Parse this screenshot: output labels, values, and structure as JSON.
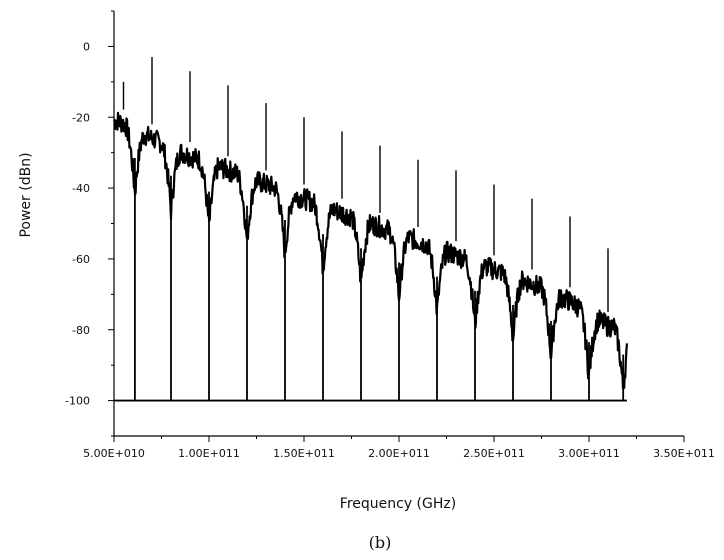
{
  "chart_data": {
    "type": "line",
    "title": "",
    "xlabel": "Frequency (GHz)",
    "ylabel": "Power (dBn)",
    "caption": "(b)",
    "xlim": [
      50000000000,
      350000000000
    ],
    "ylim": [
      -110,
      10
    ],
    "xticks": [
      "5.00E+010",
      "1.00E+011",
      "1.50E+011",
      "2.00E+011",
      "2.50E+011",
      "3.00E+011",
      "3.50E+011"
    ],
    "xtick_values": [
      50000000000,
      100000000000,
      150000000000,
      200000000000,
      250000000000,
      300000000000,
      350000000000
    ],
    "yticks": [
      "0",
      "-20",
      "-40",
      "-60",
      "-80",
      "-100"
    ],
    "ytick_values": [
      0,
      -20,
      -40,
      -60,
      -80,
      -100
    ],
    "baseline": -100,
    "x_end": 320000000000,
    "spectral_lines": [
      {
        "x": 55000000000,
        "y": -10
      },
      {
        "x": 70000000000,
        "y": -3
      },
      {
        "x": 90000000000,
        "y": -7
      },
      {
        "x": 110000000000,
        "y": -11
      },
      {
        "x": 130000000000,
        "y": -16
      },
      {
        "x": 150000000000,
        "y": -20
      },
      {
        "x": 170000000000,
        "y": -24
      },
      {
        "x": 190000000000,
        "y": -28
      },
      {
        "x": 210000000000,
        "y": -32
      },
      {
        "x": 230000000000,
        "y": -35
      },
      {
        "x": 250000000000,
        "y": -39
      },
      {
        "x": 270000000000,
        "y": -43
      },
      {
        "x": 290000000000,
        "y": -48
      },
      {
        "x": 310000000000,
        "y": -57
      }
    ],
    "nulls": [
      {
        "x": 61000000000,
        "y": -100
      },
      {
        "x": 80000000000,
        "y": -100
      },
      {
        "x": 100000000000,
        "y": -100
      },
      {
        "x": 120000000000,
        "y": -100
      },
      {
        "x": 140000000000,
        "y": -100
      },
      {
        "x": 160000000000,
        "y": -100
      },
      {
        "x": 180000000000,
        "y": -100
      },
      {
        "x": 200000000000,
        "y": -100
      },
      {
        "x": 220000000000,
        "y": -100
      },
      {
        "x": 240000000000,
        "y": -100
      },
      {
        "x": 260000000000,
        "y": -100
      },
      {
        "x": 280000000000,
        "y": -100
      },
      {
        "x": 300000000000,
        "y": -100
      },
      {
        "x": 318000000000,
        "y": -100
      }
    ],
    "lobe_peaks": [
      {
        "x": 52000000000,
        "y": -17
      },
      {
        "x": 70000000000,
        "y": -22
      },
      {
        "x": 90000000000,
        "y": -27
      },
      {
        "x": 110000000000,
        "y": -31
      },
      {
        "x": 130000000000,
        "y": -35
      },
      {
        "x": 150000000000,
        "y": -39
      },
      {
        "x": 170000000000,
        "y": -43
      },
      {
        "x": 190000000000,
        "y": -47
      },
      {
        "x": 210000000000,
        "y": -51
      },
      {
        "x": 230000000000,
        "y": -55
      },
      {
        "x": 250000000000,
        "y": -59
      },
      {
        "x": 270000000000,
        "y": -63
      },
      {
        "x": 290000000000,
        "y": -68
      },
      {
        "x": 310000000000,
        "y": -75
      }
    ],
    "grid": false,
    "legend": "none"
  }
}
